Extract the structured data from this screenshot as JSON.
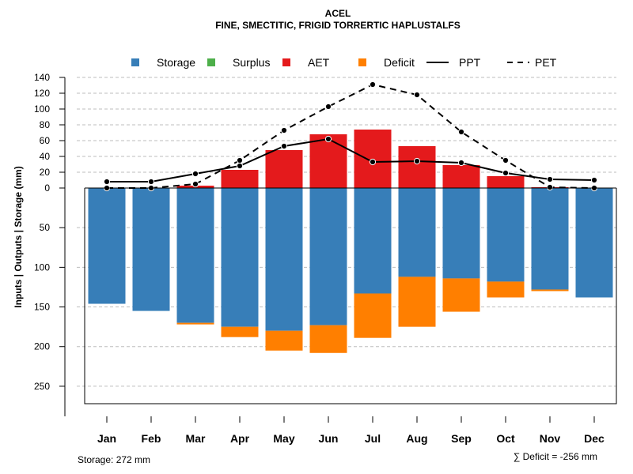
{
  "chart_data": {
    "type": "bar",
    "title": "ACEL",
    "subtitle": "FINE, SMECTITIC, FRIGID TORRERTIC HAPLUSTALFS",
    "ylabel": "Inputs | Outputs | Storage     (mm)",
    "categories": [
      "Jan",
      "Feb",
      "Mar",
      "Apr",
      "May",
      "Jun",
      "Jul",
      "Aug",
      "Sep",
      "Oct",
      "Nov",
      "Dec"
    ],
    "upper_axis": {
      "ylim": [
        0,
        140
      ],
      "ticks": [
        "140",
        "120",
        "100",
        "80",
        "60",
        "40",
        "20",
        "0"
      ],
      "tick_values": [
        140,
        120,
        100,
        80,
        60,
        40,
        20,
        0
      ]
    },
    "lower_axis": {
      "ylim": [
        0,
        272
      ],
      "ticks": [
        "50",
        "100",
        "150",
        "200",
        "250"
      ],
      "tick_values": [
        50,
        100,
        150,
        200,
        250
      ]
    },
    "legend": [
      {
        "label": "Storage",
        "kind": "box",
        "color": "#377EB8"
      },
      {
        "label": "Surplus",
        "kind": "box",
        "color": "#4DAF4A"
      },
      {
        "label": "AET",
        "kind": "box",
        "color": "#E41A1C"
      },
      {
        "label": "Deficit",
        "kind": "box",
        "color": "#FF7F00"
      },
      {
        "label": "PPT",
        "kind": "solid-line",
        "color": "#000000"
      },
      {
        "label": "PET",
        "kind": "dashed-line",
        "color": "#000000"
      }
    ],
    "series": [
      {
        "name": "Storage",
        "color": "#377EB8",
        "values": [
          146,
          155,
          170,
          175,
          180,
          173,
          133,
          112,
          114,
          118,
          128,
          138
        ]
      },
      {
        "name": "Surplus",
        "color": "#4DAF4A",
        "values": [
          0,
          0,
          0,
          0,
          0,
          0,
          0,
          0,
          0,
          0,
          0,
          0
        ]
      },
      {
        "name": "AET",
        "color": "#E41A1C",
        "values": [
          0,
          0,
          3,
          23,
          48,
          68,
          74,
          53,
          29,
          15,
          1,
          0
        ]
      },
      {
        "name": "Deficit",
        "color": "#FF7F00",
        "values": [
          0,
          0,
          2,
          13,
          25,
          35,
          56,
          63,
          42,
          20,
          2,
          0
        ]
      },
      {
        "name": "PPT",
        "color": "#000000",
        "values": [
          8,
          8,
          18,
          28,
          53,
          62,
          33,
          34,
          32,
          19,
          11,
          10
        ]
      },
      {
        "name": "PET",
        "color": "#000000",
        "values": [
          0,
          0,
          5,
          35,
          73,
          103,
          131,
          118,
          71,
          35,
          1,
          0
        ]
      }
    ],
    "footer_left": "Storage: 272 mm",
    "footer_right": "∑ Deficit = -256 mm",
    "grid": true
  }
}
